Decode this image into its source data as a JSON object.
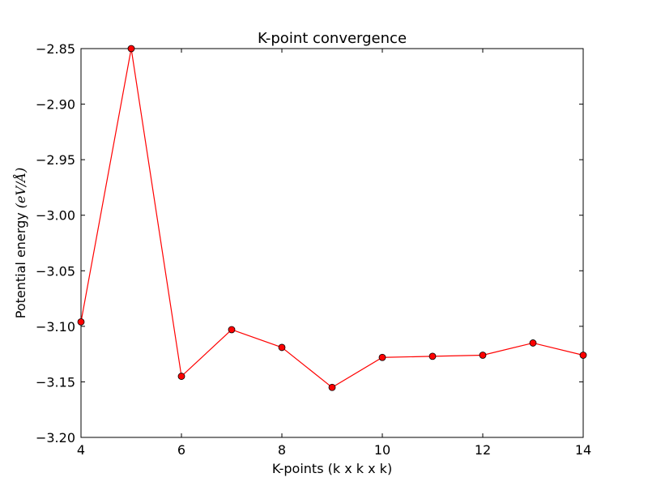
{
  "chart_data": {
    "type": "line",
    "title": "K-point convergence",
    "xlabel": "K-points (k x k x k)",
    "ylabel": {
      "text": "Potential energy ",
      "math": "(eV/Å)"
    },
    "xlim": [
      4,
      14
    ],
    "ylim": [
      -3.2,
      -2.85
    ],
    "xticks": [
      4,
      6,
      8,
      10,
      12,
      14
    ],
    "xtick_labels": [
      "4",
      "6",
      "8",
      "10",
      "12",
      "14"
    ],
    "yticks": [
      -3.2,
      -3.15,
      -3.1,
      -3.05,
      -3.0,
      -2.95,
      -2.9,
      -2.85
    ],
    "ytick_labels": [
      "−3.20",
      "−3.15",
      "−3.10",
      "−3.05",
      "−3.00",
      "−2.95",
      "−2.90",
      "−2.85"
    ],
    "grid": false,
    "series": [
      {
        "color": "#ff0000",
        "marker": "circle",
        "x": [
          4,
          5,
          6,
          7,
          8,
          9,
          10,
          11,
          12,
          13,
          14
        ],
        "y": [
          -3.096,
          -2.85,
          -3.145,
          -3.103,
          -3.119,
          -3.155,
          -3.128,
          -3.127,
          -3.126,
          -3.115,
          -3.126
        ]
      }
    ]
  }
}
